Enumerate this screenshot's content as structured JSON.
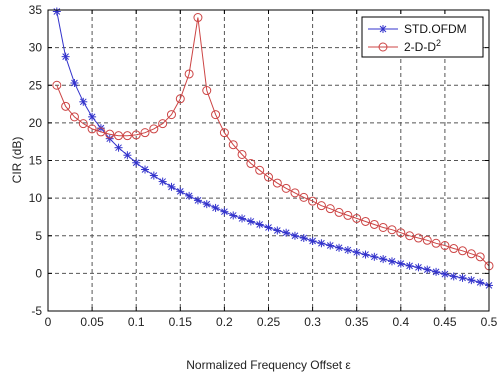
{
  "chart_data": {
    "type": "line",
    "title": "",
    "xlabel": "Normalized Frequency Offset ε",
    "ylabel": "CIR (dB)",
    "xlim": [
      0,
      0.5
    ],
    "ylim": [
      -5,
      35
    ],
    "xticks": [
      "0",
      "0.05",
      "0.1",
      "0.15",
      "0.2",
      "0.25",
      "0.3",
      "0.35",
      "0.4",
      "0.45",
      "0.5"
    ],
    "yticks": [
      "-5",
      "0",
      "5",
      "10",
      "15",
      "20",
      "25",
      "30",
      "35"
    ],
    "grid": true,
    "legend_position": "top-right",
    "series": [
      {
        "name": "STD.OFDM",
        "color": "#3333cc",
        "marker": "asterisk",
        "points": [
          [
            0.01,
            34.8
          ],
          [
            0.02,
            28.8
          ],
          [
            0.03,
            25.3
          ],
          [
            0.04,
            22.8
          ],
          [
            0.05,
            20.8
          ],
          [
            0.06,
            19.3
          ],
          [
            0.07,
            17.9
          ],
          [
            0.08,
            16.7
          ],
          [
            0.09,
            15.7
          ],
          [
            0.1,
            14.7
          ],
          [
            0.11,
            13.8
          ],
          [
            0.12,
            13.0
          ],
          [
            0.13,
            12.2
          ],
          [
            0.14,
            11.5
          ],
          [
            0.15,
            10.9
          ],
          [
            0.16,
            10.3
          ],
          [
            0.17,
            9.7
          ],
          [
            0.18,
            9.2
          ],
          [
            0.19,
            8.7
          ],
          [
            0.2,
            8.2
          ],
          [
            0.21,
            7.7
          ],
          [
            0.22,
            7.3
          ],
          [
            0.23,
            6.9
          ],
          [
            0.24,
            6.5
          ],
          [
            0.25,
            6.1
          ],
          [
            0.26,
            5.7
          ],
          [
            0.27,
            5.4
          ],
          [
            0.28,
            5.0
          ],
          [
            0.29,
            4.7
          ],
          [
            0.3,
            4.3
          ],
          [
            0.31,
            4.0
          ],
          [
            0.32,
            3.7
          ],
          [
            0.33,
            3.4
          ],
          [
            0.34,
            3.1
          ],
          [
            0.35,
            2.8
          ],
          [
            0.36,
            2.5
          ],
          [
            0.37,
            2.2
          ],
          [
            0.38,
            1.9
          ],
          [
            0.39,
            1.6
          ],
          [
            0.4,
            1.3
          ],
          [
            0.41,
            1.0
          ],
          [
            0.42,
            0.8
          ],
          [
            0.43,
            0.5
          ],
          [
            0.44,
            0.2
          ],
          [
            0.45,
            -0.1
          ],
          [
            0.46,
            -0.4
          ],
          [
            0.47,
            -0.6
          ],
          [
            0.48,
            -0.9
          ],
          [
            0.49,
            -1.2
          ],
          [
            0.5,
            -1.6
          ]
        ]
      },
      {
        "name": "2-D-D",
        "name_sup": "2",
        "color": "#cc4444",
        "marker": "circle",
        "points": [
          [
            0.01,
            25.0
          ],
          [
            0.02,
            22.2
          ],
          [
            0.03,
            20.8
          ],
          [
            0.04,
            19.9
          ],
          [
            0.05,
            19.2
          ],
          [
            0.06,
            18.8
          ],
          [
            0.07,
            18.5
          ],
          [
            0.08,
            18.3
          ],
          [
            0.09,
            18.3
          ],
          [
            0.1,
            18.4
          ],
          [
            0.11,
            18.7
          ],
          [
            0.12,
            19.2
          ],
          [
            0.13,
            19.9
          ],
          [
            0.14,
            21.1
          ],
          [
            0.15,
            23.2
          ],
          [
            0.16,
            26.5
          ],
          [
            0.17,
            34.0
          ],
          [
            0.18,
            24.3
          ],
          [
            0.19,
            21.1
          ],
          [
            0.2,
            18.7
          ],
          [
            0.21,
            17.1
          ],
          [
            0.22,
            15.8
          ],
          [
            0.23,
            14.6
          ],
          [
            0.24,
            13.7
          ],
          [
            0.25,
            12.8
          ],
          [
            0.26,
            12.0
          ],
          [
            0.27,
            11.3
          ],
          [
            0.28,
            10.7
          ],
          [
            0.29,
            10.1
          ],
          [
            0.3,
            9.6
          ],
          [
            0.31,
            9.0
          ],
          [
            0.32,
            8.6
          ],
          [
            0.33,
            8.1
          ],
          [
            0.34,
            7.7
          ],
          [
            0.35,
            7.3
          ],
          [
            0.36,
            6.9
          ],
          [
            0.37,
            6.5
          ],
          [
            0.38,
            6.1
          ],
          [
            0.39,
            5.8
          ],
          [
            0.4,
            5.4
          ],
          [
            0.41,
            5.0
          ],
          [
            0.42,
            4.7
          ],
          [
            0.43,
            4.4
          ],
          [
            0.44,
            4.0
          ],
          [
            0.45,
            3.7
          ],
          [
            0.46,
            3.3
          ],
          [
            0.47,
            3.0
          ],
          [
            0.48,
            2.6
          ],
          [
            0.49,
            2.2
          ],
          [
            0.5,
            1.0
          ]
        ]
      }
    ]
  }
}
